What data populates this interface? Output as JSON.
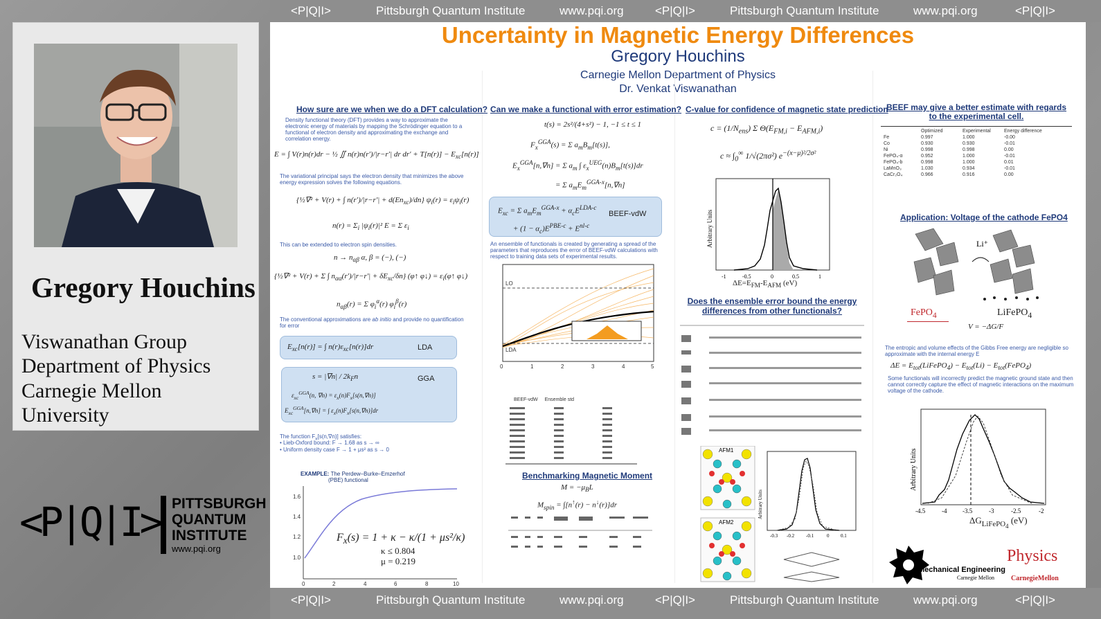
{
  "profile": {
    "name": "Gregory Houchins",
    "affiliation_lines": [
      "Viswanathan Group",
      "Department of Physics",
      "Carnegie Mellon",
      "University"
    ]
  },
  "logo": {
    "symbol": "<P|Q|I>",
    "lines": [
      "PITTSBURGH",
      "QUANTUM",
      "INSTITUTE"
    ],
    "url": "www.pqi.org"
  },
  "banner": {
    "symbol": "<P|Q|I>",
    "org": "Pittsburgh Quantum Institute",
    "url": "www.pqi.org"
  },
  "poster": {
    "title": "Uncertainty in Magnetic Energy Differences",
    "author": "Gregory Houchins",
    "department": "Carnegie Mellon Department of Physics",
    "advisor": "Dr. Venkat Viswanathan",
    "col1": {
      "heading": "How sure are we when we do a DFT calculation?",
      "intro": "Density functional theory (DFT) provides a way to approximate the electronic energy of materials by mapping the Schrödinger equation to a functional of electron density and approximating the exchange and correlation energy.",
      "variational": "The variational principal says the electron density that minimizes the above energy expression solves the following equations.",
      "spin": "This can be extended to electron spin densities.",
      "conventional_a": "The conventional approximations are ",
      "conventional_em": "ab initio",
      "conventional_b": " and provide no quantification for error",
      "lda_label": "LDA",
      "gga_label": "GGA",
      "satisfies": "The function F",
      "satisfies_tail": " satisfies:",
      "bullets": [
        "Lieb-Oxford bound: F → 1.68 as s → ∞",
        "Uniform density case F → 1 + μs² as s → 0"
      ],
      "example_a": "EXAMPLE: ",
      "example_b": "The Perdew–Burke–Emzerhof",
      "example_c": "(PBE) functional",
      "pbe_formula": "F",
      "pbe_kappa": "κ ≤ 0.804",
      "pbe_mu": "μ = 0.219"
    },
    "col2": {
      "heading": "Can we make a functional with error estimation?",
      "beef_label": "BEEF-vdW",
      "ensemble_text": "An ensemble of functionals is created by generating a spread of the parameters that reproduces the error of BEEF-vdW calculations with respect to training data sets of experimental results.",
      "lo": "LO",
      "lda": "LDA",
      "benchmark_heading": "Benchmarking Magnetic Moment",
      "benchmark_eq": "M = −μ",
      "table_headers": [
        "BEEF-vdW",
        "Ensemble std"
      ]
    },
    "col3": {
      "heading": "C-value for confidence of magnetic state prediction",
      "ylabel": "Arbitrary Units",
      "xlabel": "ΔE=E",
      "xlabel_sub1": "FM",
      "xlabel_mid": "-E",
      "xlabel_sub2": "AFM",
      "xlabel_unit": " (eV)",
      "xticks": [
        "-1",
        "-0.5",
        "0",
        "0.5",
        "1"
      ],
      "question": "Does the ensemble error bound the energy differences from other functionals?",
      "afm1": "AFM1",
      "afm2": "AFM2",
      "ylabel2": "Arbitrary Units",
      "xticks2": [
        "-0.3",
        "-0.2",
        "-0.1",
        "0",
        "0.1"
      ]
    },
    "col4": {
      "heading": "BEEF may give a better estimate with regards to the experimental cell.",
      "table_headers": [
        "",
        "Optimized",
        "Experimental",
        "Energy difference"
      ],
      "rows": [
        [
          "Fe",
          "0.997",
          "1.000",
          "-0.00"
        ],
        [
          "Co",
          "0.930",
          "0.930",
          "-0.01"
        ],
        [
          "Ni",
          "0.998",
          "0.998",
          "0.00"
        ],
        [
          "FePO₄-α",
          "0.952",
          "1.000",
          "-0.01"
        ],
        [
          "FePO₄-b",
          "0.998",
          "1.000",
          "0.01"
        ],
        [
          "LaMnO₃",
          "1.030",
          "0.934",
          "-0.01"
        ],
        [
          "CaCr₂O₄",
          "0.966",
          "0.916",
          "0.00"
        ]
      ],
      "voltage_heading": "Application: Voltage of the cathode FePO4",
      "li_label": "Li⁺",
      "fepo4_a": "FePO",
      "fepo4_sub": "4",
      "lifepo4_label": "LiFePO",
      "lifepo4_sub": "4",
      "entropic_text": "The entropic and volume effects of the Gibbs Free energy are negligible so approximate with the internal energy E",
      "incorrect_text": "Some functionals will incorrectly predict the magnetic ground state and then cannot correctly capture the effect of magnetic interactions on the maximum voltage of the cathode.",
      "ylabel": "Arbitrary Units",
      "xlabel": "ΔG",
      "xlabel_sub": "LiFePO",
      "xlabel_sub2": "4",
      "xlabel_unit": " (eV)",
      "xticks": [
        "-4.5",
        "-4",
        "-3.5",
        "-3",
        "-2.5",
        "-2"
      ],
      "mech_eng": "Mechanical Engineering",
      "cmu_small": "Carnegie Mellon",
      "physics": "Physics",
      "physics_cmu": "CarnegieMellon"
    }
  },
  "colors": {
    "title_orange": "#ef8a10",
    "navy": "#1f3a7a",
    "body_blue": "#3a5aa8",
    "box_blue": "#cfe0f2",
    "red": "#c0282d"
  }
}
